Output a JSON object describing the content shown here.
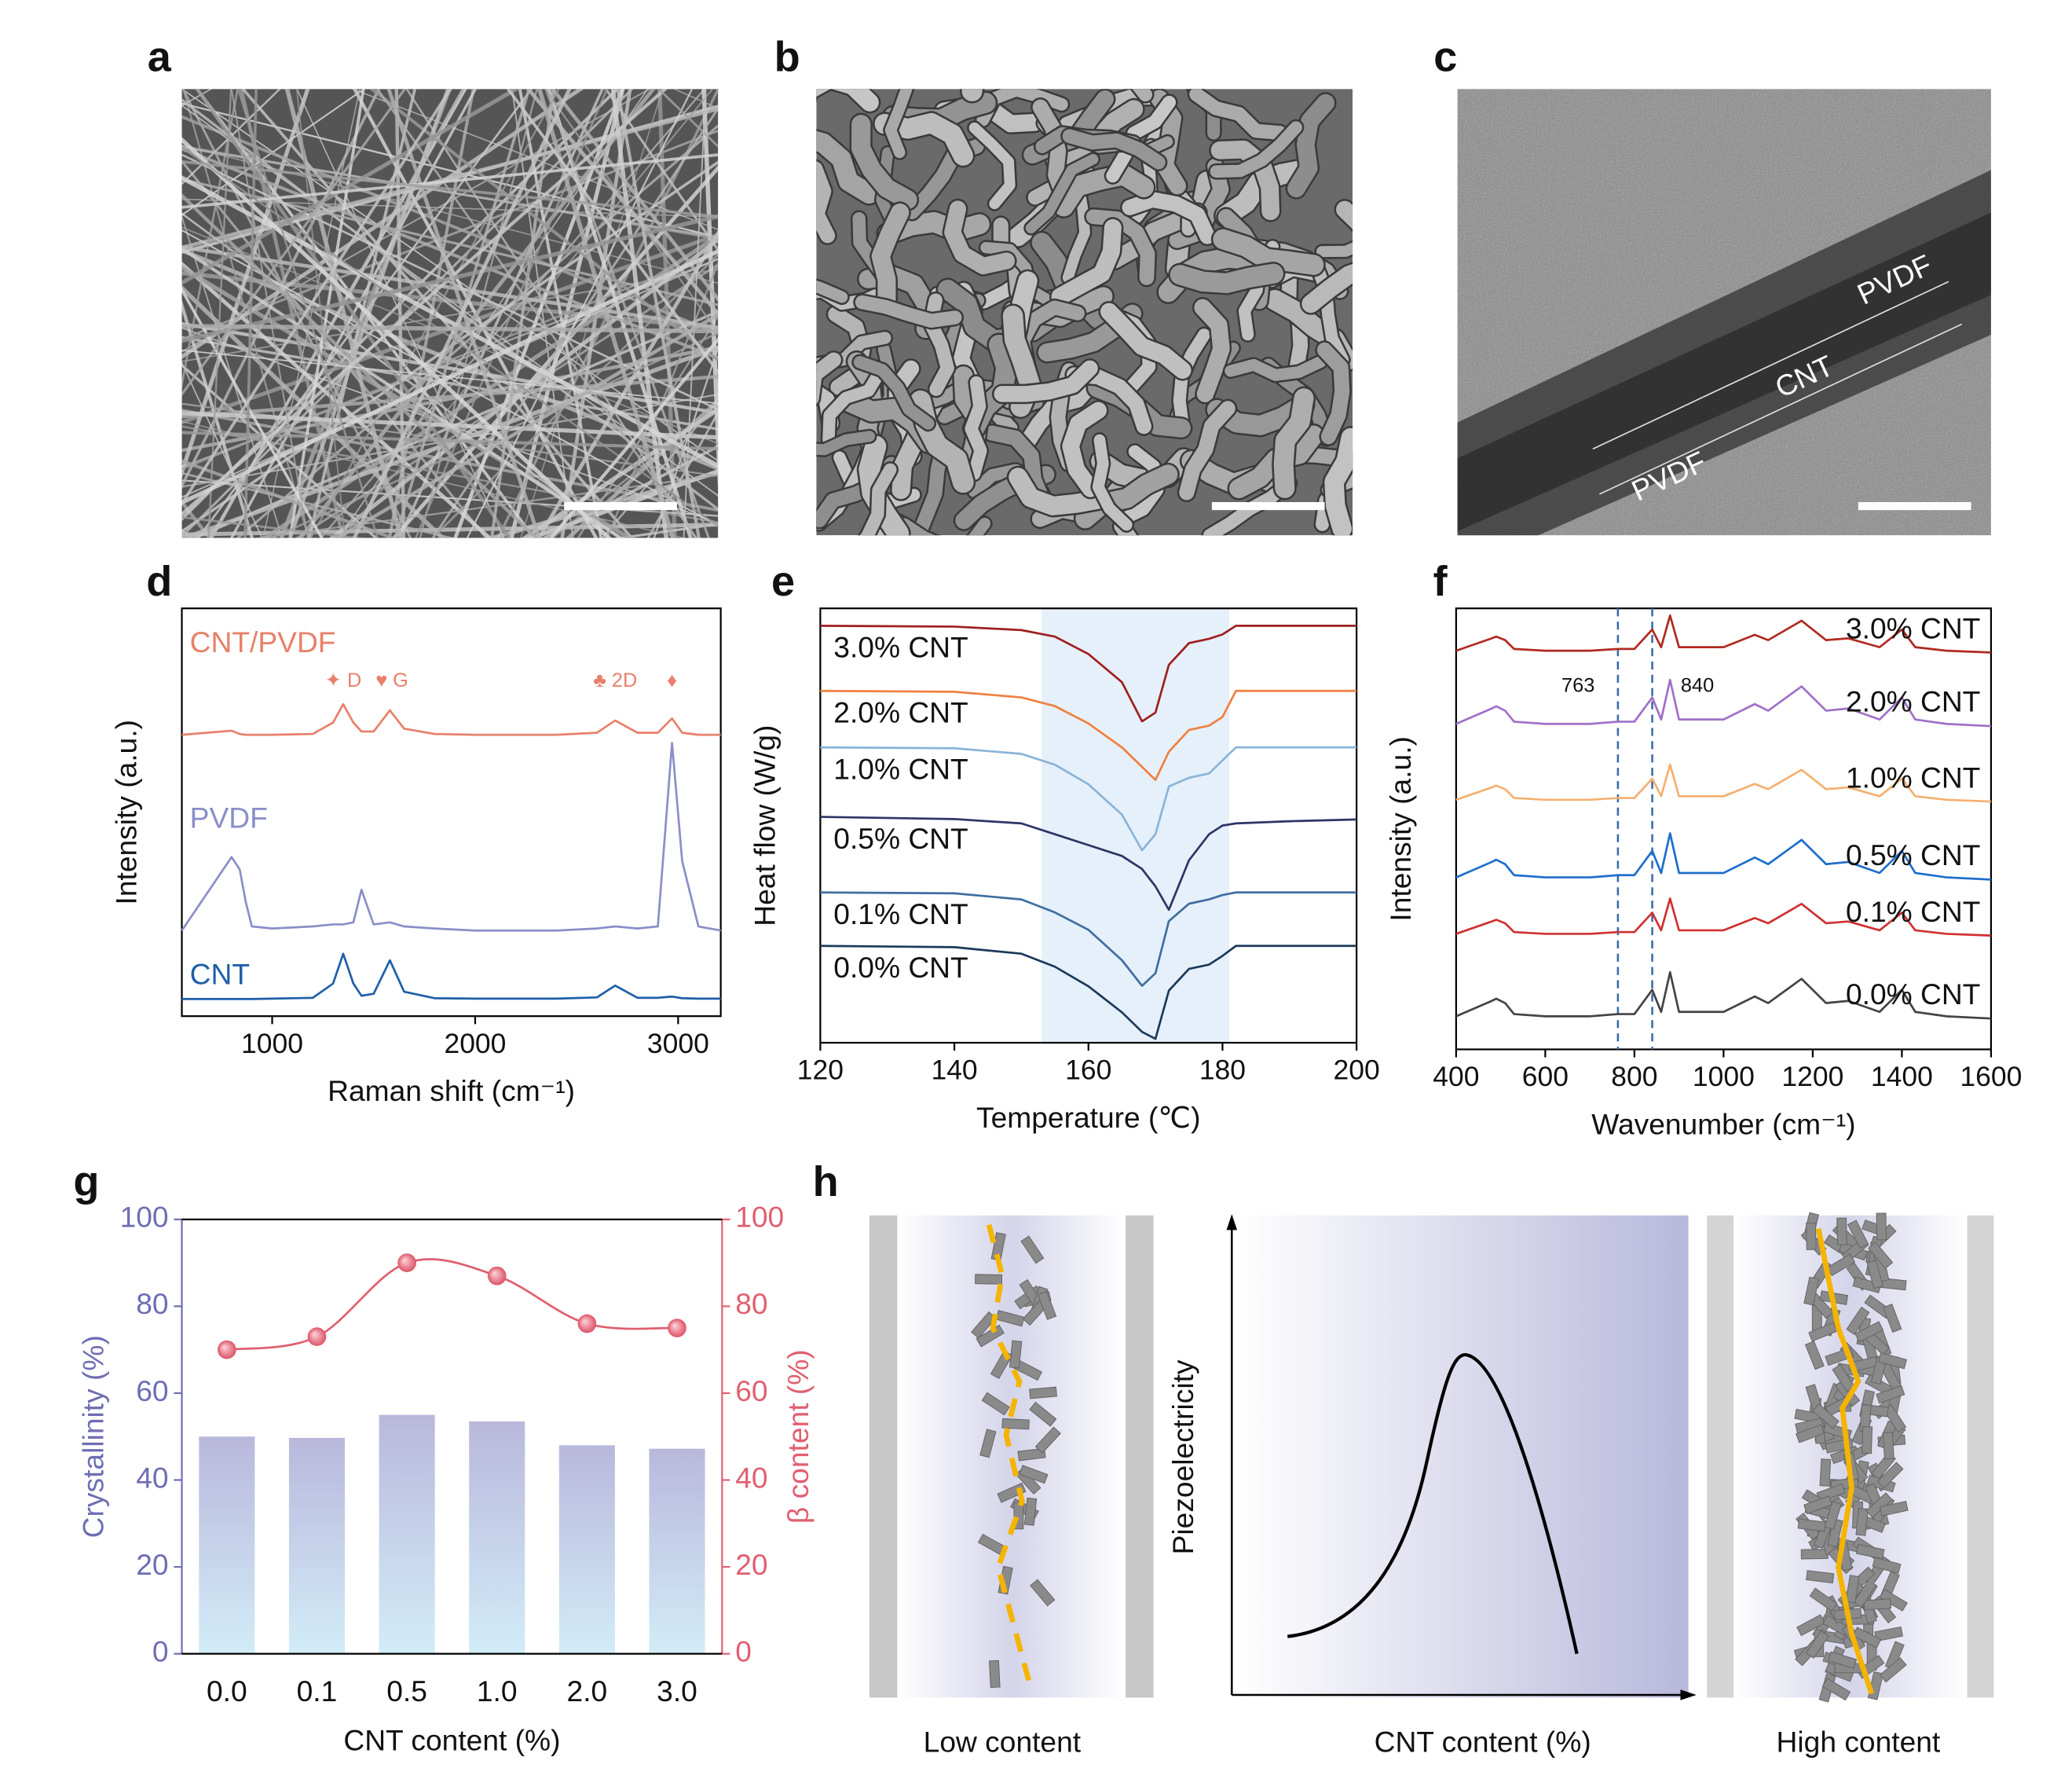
{
  "panel_labels": [
    "a",
    "b",
    "c",
    "d",
    "e",
    "f",
    "g",
    "h"
  ],
  "image_c_labels": [
    "PVDF",
    "CNT",
    "PVDF"
  ],
  "chart_data": [
    {
      "type": "line",
      "xlabel": "Raman shift (cm⁻¹)",
      "ylabel": "Intensity (a.u.)",
      "xlim": [
        555,
        3210
      ],
      "ylim": [
        0,
        10
      ],
      "xticks": [
        1000,
        2000,
        3000
      ],
      "x": [
        555,
        800,
        840,
        870,
        900,
        1000,
        1200,
        1300,
        1350,
        1400,
        1440,
        1500,
        1580,
        1650,
        1800,
        2000,
        2400,
        2600,
        2690,
        2800,
        2900,
        2970,
        3020,
        3100,
        3210
      ],
      "series": [
        {
          "name": "CNT/PVDF",
          "color": "#e8806a",
          "values": [
            6.9,
            7.0,
            6.92,
            6.9,
            6.9,
            6.9,
            6.92,
            7.2,
            7.65,
            7.2,
            6.98,
            6.98,
            7.5,
            7.05,
            6.92,
            6.9,
            6.9,
            6.95,
            7.25,
            6.95,
            6.95,
            7.3,
            6.95,
            6.9,
            6.9
          ]
        },
        {
          "name": "PVDF",
          "color": "#8a8fc8",
          "values": [
            2.1,
            3.9,
            3.6,
            2.8,
            2.2,
            2.15,
            2.2,
            2.25,
            2.25,
            2.3,
            3.1,
            2.25,
            2.3,
            2.2,
            2.15,
            2.1,
            2.1,
            2.15,
            2.2,
            2.15,
            2.2,
            6.7,
            3.8,
            2.2,
            2.1
          ]
        },
        {
          "name": "CNT",
          "color": "#1f5fa8",
          "values": [
            0.42,
            0.42,
            0.42,
            0.42,
            0.42,
            0.43,
            0.45,
            0.8,
            1.53,
            0.8,
            0.5,
            0.55,
            1.37,
            0.6,
            0.44,
            0.43,
            0.43,
            0.46,
            0.75,
            0.45,
            0.45,
            0.48,
            0.44,
            0.43,
            0.43
          ]
        }
      ],
      "annotations": [
        {
          "text": "✦ D",
          "x": 1350
        },
        {
          "text": "♥ G",
          "x": 1590
        },
        {
          "text": "♣ 2D",
          "x": 2690
        },
        {
          "text": "♦",
          "x": 2970
        }
      ]
    },
    {
      "type": "line",
      "xlabel": "Temperature (℃)",
      "ylabel": "Heat flow (W/g)",
      "xlim": [
        120,
        200
      ],
      "ylim": [
        0,
        10
      ],
      "xticks": [
        120,
        140,
        160,
        180,
        200
      ],
      "shaded_range": [
        153,
        181
      ],
      "x": [
        120,
        140,
        150,
        155,
        160,
        165,
        168,
        170,
        172,
        175,
        178,
        180,
        182,
        190,
        200
      ],
      "series": [
        {
          "name": "3.0% CNT",
          "color": "#a01f1f",
          "values": [
            9.6,
            9.58,
            9.5,
            9.35,
            8.95,
            8.3,
            7.4,
            7.6,
            8.7,
            9.2,
            9.3,
            9.4,
            9.6,
            9.6,
            9.6
          ]
        },
        {
          "name": "2.0% CNT",
          "color": "#f08040",
          "values": [
            8.1,
            8.08,
            7.95,
            7.75,
            7.35,
            6.8,
            6.35,
            6.05,
            6.7,
            7.2,
            7.3,
            7.5,
            8.1,
            8.1,
            8.1
          ]
        },
        {
          "name": "1.0% CNT",
          "color": "#8ab4d8",
          "values": [
            6.8,
            6.78,
            6.65,
            6.4,
            5.95,
            5.25,
            4.43,
            4.8,
            5.9,
            6.1,
            6.2,
            6.5,
            6.8,
            6.8,
            6.8
          ]
        },
        {
          "name": "0.5% CNT",
          "color": "#2c3566",
          "values": [
            5.2,
            5.15,
            5.05,
            4.8,
            4.55,
            4.3,
            4.0,
            3.6,
            3.06,
            4.2,
            4.8,
            5.0,
            5.05,
            5.1,
            5.14
          ]
        },
        {
          "name": "0.1% CNT",
          "color": "#3f6ea0",
          "values": [
            3.46,
            3.44,
            3.3,
            3.0,
            2.6,
            1.9,
            1.31,
            1.6,
            2.8,
            3.2,
            3.3,
            3.4,
            3.46,
            3.46,
            3.46
          ]
        },
        {
          "name": "0.0% CNT",
          "color": "#1b3a5a",
          "values": [
            2.23,
            2.2,
            2.05,
            1.75,
            1.3,
            0.7,
            0.25,
            0.09,
            1.2,
            1.7,
            1.8,
            2.0,
            2.23,
            2.23,
            2.23
          ]
        }
      ]
    },
    {
      "type": "line",
      "xlabel": "Wavenumber (cm⁻¹)",
      "ylabel": "Intensity (a.u.)",
      "xlim": [
        400,
        1600
      ],
      "ylim": [
        0,
        10
      ],
      "xticks": [
        400,
        600,
        800,
        1000,
        1200,
        1400,
        1600
      ],
      "vlines": [
        763,
        840
      ],
      "x": [
        400,
        480,
        490,
        510,
        530,
        600,
        700,
        763,
        800,
        840,
        860,
        880,
        900,
        1000,
        1070,
        1100,
        1175,
        1230,
        1280,
        1350,
        1400,
        1430,
        1500,
        1600
      ],
      "series": [
        {
          "name": "3.0% CNT",
          "color": "#b02a20",
          "values": [
            9.04,
            9.32,
            9.36,
            9.28,
            9.08,
            9.04,
            9.04,
            9.08,
            9.08,
            9.52,
            9.12,
            9.84,
            9.12,
            9.12,
            9.4,
            9.28,
            9.72,
            9.28,
            9.32,
            9.12,
            9.52,
            9.12,
            9.04,
            9.0
          ]
        },
        {
          "name": "2.0% CNT",
          "color": "#a070c8",
          "values": [
            7.38,
            7.73,
            7.78,
            7.68,
            7.43,
            7.38,
            7.38,
            7.43,
            7.43,
            7.98,
            7.48,
            8.38,
            7.48,
            7.48,
            7.83,
            7.68,
            8.23,
            7.68,
            7.73,
            7.48,
            7.98,
            7.48,
            7.38,
            7.33
          ]
        },
        {
          "name": "1.0% CNT",
          "color": "#f4b070",
          "values": [
            5.66,
            5.94,
            5.98,
            5.9,
            5.7,
            5.66,
            5.66,
            5.7,
            5.7,
            6.14,
            5.74,
            6.46,
            5.74,
            5.74,
            6.02,
            5.9,
            6.34,
            5.9,
            5.94,
            5.74,
            6.14,
            5.74,
            5.66,
            5.62
          ]
        },
        {
          "name": "0.5% CNT",
          "color": "#1e6ecc",
          "values": [
            3.9,
            4.25,
            4.3,
            4.2,
            3.95,
            3.9,
            3.9,
            3.95,
            3.95,
            4.5,
            4.0,
            4.9,
            4.0,
            4.0,
            4.35,
            4.2,
            4.75,
            4.2,
            4.25,
            4.0,
            4.5,
            4.0,
            3.9,
            3.85
          ]
        },
        {
          "name": "0.1% CNT",
          "color": "#d03030",
          "values": [
            2.62,
            2.9,
            2.94,
            2.86,
            2.66,
            2.62,
            2.62,
            2.66,
            2.66,
            3.1,
            2.7,
            3.42,
            2.7,
            2.7,
            2.98,
            2.86,
            3.3,
            2.86,
            2.9,
            2.7,
            3.1,
            2.7,
            2.62,
            2.58
          ]
        },
        {
          "name": "0.0% CNT",
          "color": "#444444",
          "values": [
            0.75,
            1.1,
            1.15,
            1.05,
            0.8,
            0.75,
            0.75,
            0.8,
            0.8,
            1.35,
            0.85,
            1.75,
            0.85,
            0.85,
            1.2,
            1.05,
            1.6,
            1.05,
            1.1,
            0.85,
            1.35,
            0.85,
            0.75,
            0.7
          ]
        }
      ]
    },
    {
      "type": "bar",
      "xlabel": "CNT content (%)",
      "ylabel": "Crystallinity  (%)",
      "y2label": "β content  (%)",
      "categories": [
        "0.0",
        "0.1",
        "0.5",
        "1.0",
        "2.0",
        "3.0"
      ],
      "ylim": [
        0,
        100
      ],
      "yticks": [
        0,
        20,
        40,
        60,
        80,
        100
      ],
      "y2lim": [
        0,
        100
      ],
      "y2ticks": [
        0,
        20,
        40,
        60,
        80,
        100
      ],
      "y_color": "#6e6eb4",
      "y2_color": "#e06070",
      "series": [
        {
          "type": "bar",
          "color": "#c4c4e4",
          "values": [
            50,
            49.7,
            55,
            53.5,
            48,
            47.2
          ]
        },
        {
          "type": "line",
          "axis": "y2",
          "color": "#e06070",
          "values": [
            70,
            73,
            90,
            87,
            76,
            75
          ]
        }
      ]
    }
  ],
  "schematic": {
    "left_label": "Low content",
    "middle_label": "CNT content (%)",
    "right_label": "High content",
    "y_axis_label": "Piezoelectricity"
  }
}
